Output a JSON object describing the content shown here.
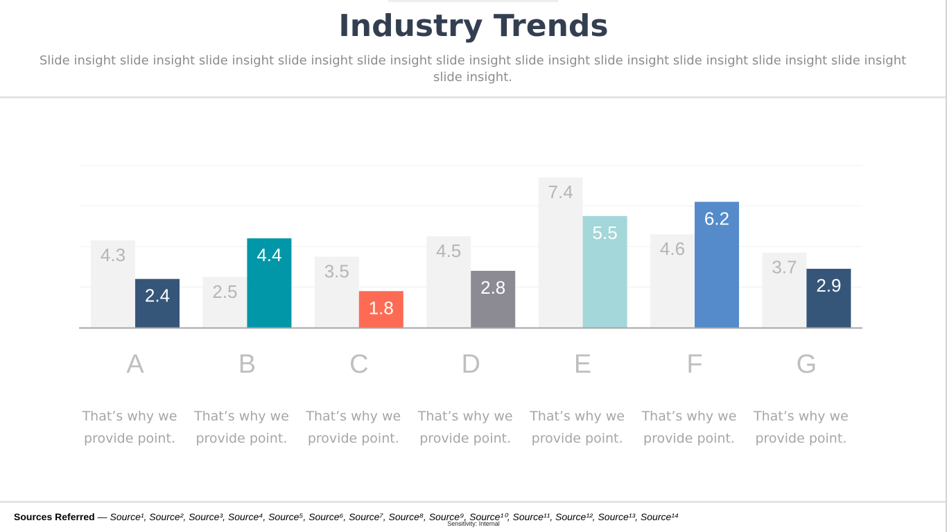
{
  "slide": {
    "title": "Industry Trends",
    "subtitle": "Slide insight slide insight slide insight slide insight slide insight slide insight slide insight slide insight slide insight slide insight slide insight slide insight."
  },
  "chart_data": {
    "type": "bar",
    "categories": [
      "A",
      "B",
      "C",
      "D",
      "E",
      "F",
      "G"
    ],
    "series": [
      {
        "values": [
          4.3,
          2.5,
          3.5,
          4.5,
          7.4,
          4.6,
          3.7
        ],
        "color": "#f2f2f2"
      },
      {
        "values": [
          2.4,
          4.4,
          1.8,
          2.8,
          5.5,
          6.2,
          2.9
        ],
        "colors": [
          "#365679",
          "#0197a8",
          "#fd6b54",
          "#8c8b94",
          "#a4d7d9",
          "#558bca",
          "#365679"
        ]
      }
    ],
    "ylim": [
      0,
      8
    ],
    "grid": true,
    "title": "",
    "xlabel": "",
    "ylabel": ""
  },
  "notes": [
    "That’s why we provide point.",
    "That’s why we provide point.",
    "That’s why we provide point.",
    "That’s why we provide point.",
    "That’s why we provide point.",
    "That’s why we provide point.",
    "That’s why we provide point."
  ],
  "footer": {
    "sources_label": "Sources Referred",
    "sources_list": " — Source¹, Source², Source³, Source⁴, Source⁵, Source⁶, Source⁷, Source⁸, Source⁹, Source¹⁰, Source¹¹, Source¹², Source¹³, Source¹⁴",
    "sensitivity": "Sensitivity: Internal"
  }
}
